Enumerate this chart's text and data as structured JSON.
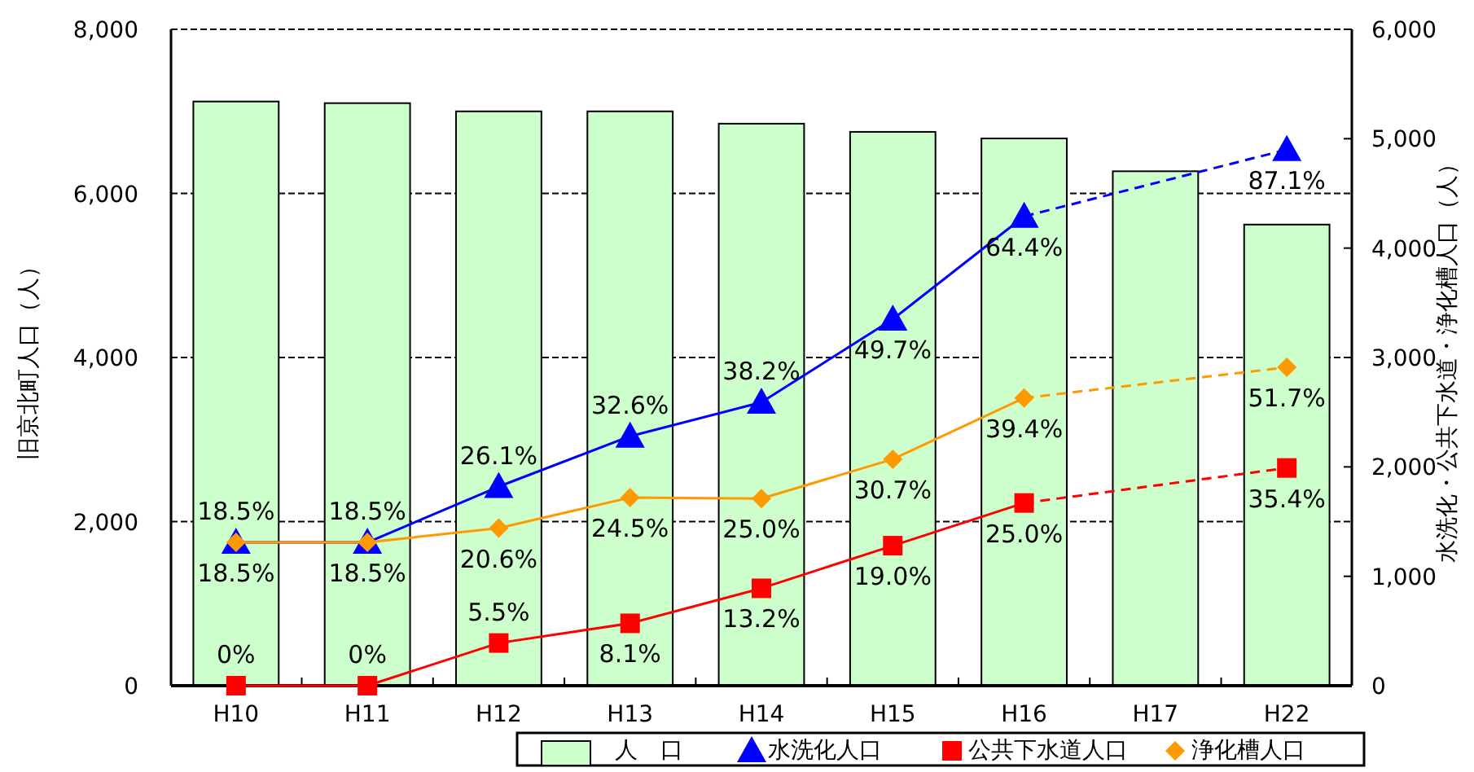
{
  "chart_data": {
    "type": "bar",
    "categories": [
      "H10",
      "H11",
      "H12",
      "H13",
      "H14",
      "H15",
      "H16",
      "H17",
      "H22"
    ],
    "ylabel": "旧京北町人口（人）",
    "y2label": "水洗化・公共下水道・浄化槽人口（人）",
    "ylim": [
      0,
      8000
    ],
    "yticks": [
      0,
      {
        "value": 2000,
        "label": "2,000"
      },
      {
        "value": 4000,
        "label": "4,000"
      },
      {
        "value": 6000,
        "label": "6,000"
      },
      {
        "value": 8000,
        "label": "8,000"
      }
    ],
    "y2lim": [
      0,
      6000
    ],
    "y2ticks": [
      0,
      {
        "value": 1000,
        "label": "1,000"
      },
      {
        "value": 2000,
        "label": "2,000"
      },
      {
        "value": 3000,
        "label": "3,000"
      },
      {
        "value": 4000,
        "label": "4,000"
      },
      {
        "value": 5000,
        "label": "5,000"
      },
      {
        "value": 6000,
        "label": "6,000"
      }
    ],
    "grid": "y",
    "legend": "bottom",
    "series": [
      {
        "name": "人　口",
        "color": "#ccffcc",
        "values": [
          7120,
          7100,
          7000,
          7000,
          6850,
          6750,
          6670,
          6270,
          5620
        ]
      },
      {
        "name": "水洗化人口",
        "type": "line",
        "axis": "y2",
        "marker": "triangle",
        "color": "#0000ff",
        "values": [
          1310,
          1310,
          1820,
          2280,
          2590,
          3350,
          4290,
          null,
          4900
        ]
      },
      {
        "name": "公共下水道人口",
        "type": "line",
        "axis": "y2",
        "marker": "square",
        "color": "#ff0000",
        "values": [
          0,
          0,
          390,
          570,
          890,
          1280,
          1670,
          null,
          1990
        ]
      },
      {
        "name": "浄化槽人口",
        "type": "line",
        "axis": "y2",
        "marker": "diamond",
        "color": "#ff9900",
        "values": [
          1310,
          1310,
          1440,
          1720,
          1710,
          2070,
          2630,
          null,
          2910
        ]
      }
    ],
    "annotations": [
      "18.5%",
      "18.5%",
      "26.1%",
      "32.6%",
      "38.2%",
      "49.7%",
      "64.4%",
      "87.1%",
      "0%",
      "0%",
      "5.5%",
      "8.1%",
      "13.2%",
      "19.0%",
      "25.0%",
      "35.4%",
      "18.5%",
      "18.5%",
      "20.6%",
      "24.5%",
      "25.0%",
      "30.7%",
      "39.4%",
      "51.7%"
    ]
  }
}
